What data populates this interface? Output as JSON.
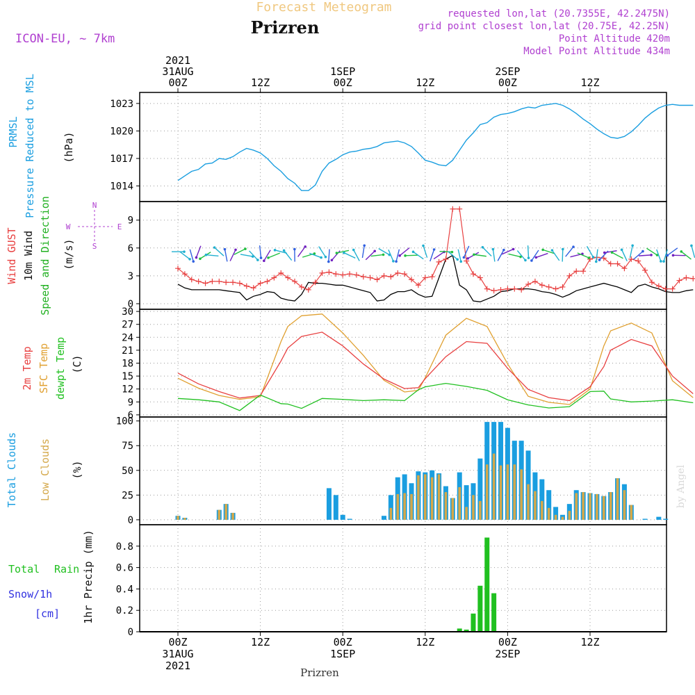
{
  "header": {
    "title_small": "Forecast Meteogram",
    "station": "Prizren",
    "model": "ICON-EU, ~ 7km",
    "requested": "requested lon,lat (20.7355E, 42.2475N)",
    "gridpoint": "grid point closest lon,lat (20.75E, 42.25N)",
    "point_alt": "Point Altitude 420m",
    "model_alt": "Model Point Altitude 434m",
    "watermark": "by Angel",
    "footer_station": "Prizren"
  },
  "time_axis": {
    "hours_total": 75,
    "top_ticks": [
      {
        "h": 0,
        "lines": [
          "2021",
          "31AUG",
          "00Z"
        ]
      },
      {
        "h": 12,
        "lines": [
          "12Z"
        ]
      },
      {
        "h": 24,
        "lines": [
          "1SEP",
          "00Z"
        ]
      },
      {
        "h": 36,
        "lines": [
          "12Z"
        ]
      },
      {
        "h": 48,
        "lines": [
          "2SEP",
          "00Z"
        ]
      },
      {
        "h": 60,
        "lines": [
          "12Z"
        ]
      }
    ],
    "bottom_ticks": [
      {
        "h": 0,
        "lines": [
          "00Z",
          "31AUG",
          "2021"
        ]
      },
      {
        "h": 12,
        "lines": [
          "12Z"
        ]
      },
      {
        "h": 24,
        "lines": [
          "00Z",
          "1SEP"
        ]
      },
      {
        "h": 36,
        "lines": [
          "12Z"
        ]
      },
      {
        "h": 48,
        "lines": [
          "00Z",
          "2SEP"
        ]
      },
      {
        "h": 60,
        "lines": [
          "12Z"
        ]
      }
    ]
  },
  "colors": {
    "prmsl": "#1a9ee0",
    "gust": "#e84040",
    "wind": "#000000",
    "dir": "#20b020",
    "temp2m": "#e84040",
    "sfc": "#e0a030",
    "dewpt": "#20c020",
    "total_cloud": "#1a9ee0",
    "low_cloud": "#d4a84a",
    "rain": "#20c020",
    "snow": "#3030e0",
    "purple": "#b040d0",
    "orange_title": "#f0c880"
  },
  "chart_data": [
    {
      "type": "line",
      "name": "prmsl",
      "title": "PRMSL Pressure Reduced to MSL",
      "ylabel": "(hPa)",
      "ylim": [
        1012.3,
        1024.2
      ],
      "yticks": [
        1014,
        1017,
        1020,
        1023
      ],
      "labels": [
        "PRMSL",
        "Pressure Reduced to MSL",
        "(hPa)"
      ],
      "x": [
        0,
        1,
        2,
        3,
        4,
        5,
        6,
        7,
        8,
        9,
        10,
        11,
        12,
        13,
        14,
        15,
        16,
        17,
        18,
        19,
        20,
        21,
        22,
        23,
        24,
        25,
        26,
        27,
        28,
        29,
        30,
        31,
        32,
        33,
        34,
        35,
        36,
        37,
        38,
        39,
        40,
        41,
        42,
        43,
        44,
        45,
        46,
        47,
        48,
        49,
        50,
        51,
        52,
        53,
        54,
        55,
        56,
        57,
        58,
        59,
        60,
        61,
        62,
        63,
        64,
        65,
        66,
        67,
        68,
        69,
        70,
        71,
        72,
        73,
        74,
        75
      ],
      "values": [
        1014.6,
        1015.1,
        1015.6,
        1015.8,
        1016.4,
        1016.5,
        1017.0,
        1016.9,
        1017.2,
        1017.7,
        1018.1,
        1017.9,
        1017.6,
        1017.0,
        1016.2,
        1015.6,
        1014.8,
        1014.3,
        1013.5,
        1013.5,
        1014.1,
        1015.6,
        1016.5,
        1016.9,
        1017.4,
        1017.7,
        1017.8,
        1018.0,
        1018.1,
        1018.3,
        1018.7,
        1018.8,
        1018.9,
        1018.7,
        1018.3,
        1017.6,
        1016.8,
        1016.6,
        1016.3,
        1016.2,
        1016.8,
        1017.9,
        1019.0,
        1019.8,
        1020.7,
        1020.9,
        1021.5,
        1021.8,
        1021.9,
        1022.1,
        1022.4,
        1022.6,
        1022.5,
        1022.8,
        1022.9,
        1023.0,
        1022.8,
        1022.4,
        1021.9,
        1021.3,
        1020.8,
        1020.2,
        1019.7,
        1019.3,
        1019.2,
        1019.4,
        1019.9,
        1020.6,
        1021.4,
        1022.0,
        1022.5,
        1022.8,
        1022.9,
        1022.8,
        1022.8,
        1022.8
      ]
    },
    {
      "type": "line",
      "name": "wind",
      "title": "Wind GUST / 10m Wind Speed and Direction",
      "ylabel": "(m/s)",
      "ylim": [
        -0.6,
        11
      ],
      "yticks": [
        0,
        3,
        6,
        9
      ],
      "labels": [
        "Wind GUST",
        "10m Wind",
        "Speed and Direction",
        "(m/s)"
      ],
      "compass": [
        "N",
        "W",
        "E",
        "S"
      ],
      "x": [
        0,
        1,
        2,
        3,
        4,
        5,
        6,
        7,
        8,
        9,
        10,
        11,
        12,
        13,
        14,
        15,
        16,
        17,
        18,
        19,
        20,
        21,
        22,
        23,
        24,
        25,
        26,
        27,
        28,
        29,
        30,
        31,
        32,
        33,
        34,
        35,
        36,
        37,
        38,
        39,
        40,
        41,
        42,
        43,
        44,
        45,
        46,
        47,
        48,
        49,
        50,
        51,
        52,
        53,
        54,
        55,
        56,
        57,
        58,
        59,
        60,
        61,
        62,
        63,
        64,
        65,
        66,
        67,
        68,
        69,
        70,
        71,
        72,
        73,
        74,
        75
      ],
      "gust": [
        3.8,
        3.2,
        2.6,
        2.4,
        2.2,
        2.4,
        2.4,
        2.3,
        2.3,
        2.2,
        1.9,
        1.7,
        2.2,
        2.4,
        2.8,
        3.3,
        2.8,
        2.4,
        1.8,
        1.5,
        2.3,
        3.3,
        3.4,
        3.2,
        3.1,
        3.2,
        3.1,
        2.9,
        2.8,
        2.6,
        3.0,
        2.9,
        3.3,
        3.2,
        2.6,
        2.0,
        2.8,
        2.9,
        4.5,
        4.8,
        10.2,
        10.2,
        4.6,
        3.2,
        2.8,
        1.6,
        1.4,
        1.5,
        1.6,
        1.6,
        1.5,
        2.1,
        2.4,
        2.0,
        1.8,
        1.6,
        1.8,
        3.0,
        3.5,
        3.5,
        4.8,
        5.0,
        4.9,
        4.3,
        4.3,
        3.8,
        4.8,
        4.6,
        3.6,
        2.3,
        1.9,
        1.6,
        1.6,
        2.5,
        2.8,
        2.7
      ],
      "speed": [
        2.1,
        1.7,
        1.5,
        1.5,
        1.5,
        1.5,
        1.5,
        1.4,
        1.3,
        1.2,
        0.4,
        0.8,
        1.0,
        1.3,
        1.2,
        0.6,
        0.4,
        0.3,
        1.0,
        2.3,
        2.2,
        2.2,
        2.1,
        2.0,
        2.0,
        1.8,
        1.6,
        1.4,
        1.2,
        0.3,
        0.4,
        1.0,
        1.3,
        1.3,
        1.5,
        1.0,
        0.7,
        0.8,
        2.8,
        4.8,
        5.2,
        2.0,
        1.5,
        0.3,
        0.2,
        0.5,
        0.8,
        1.3,
        1.4,
        1.6,
        1.6,
        1.6,
        1.5,
        1.3,
        1.2,
        1.0,
        0.7,
        1.0,
        1.4,
        1.6,
        1.8,
        2.0,
        2.2,
        2.0,
        1.8,
        1.5,
        1.2,
        1.9,
        2.1,
        1.8,
        1.6,
        1.3,
        1.2,
        1.2,
        1.4,
        1.5
      ]
    },
    {
      "type": "line",
      "name": "temperature",
      "title": "2m Temp / SFC Temp / dewpt Temp",
      "ylabel": "(C)",
      "ylim": [
        5.5,
        30.5
      ],
      "yticks": [
        6,
        9,
        12,
        15,
        18,
        21,
        24,
        27,
        30
      ],
      "labels": [
        "2m Temp",
        "SFC Temp",
        "dewpt Temp",
        "(C)"
      ],
      "x": [
        0,
        3,
        6,
        9,
        12,
        15,
        16,
        18,
        21,
        24,
        27,
        30,
        33,
        35,
        36,
        39,
        42,
        45,
        48,
        51,
        54,
        57,
        60,
        62,
        63,
        66,
        69,
        72,
        75
      ],
      "temp2m": [
        15.7,
        13.2,
        11.4,
        9.9,
        10.5,
        18.5,
        21.5,
        24.2,
        25.2,
        22.0,
        17.8,
        14.3,
        12.1,
        12.3,
        14.4,
        19.5,
        23.0,
        22.6,
        16.8,
        11.9,
        10.0,
        9.3,
        12.5,
        17.2,
        21.0,
        23.5,
        22.0,
        15.0,
        10.9
      ],
      "sfc": [
        14.5,
        12.2,
        10.5,
        9.6,
        10.2,
        23.0,
        26.5,
        29.0,
        29.4,
        25.0,
        19.8,
        14.0,
        11.3,
        11.7,
        14.6,
        24.5,
        28.4,
        26.5,
        17.8,
        10.3,
        8.9,
        8.4,
        12.0,
        22.0,
        25.5,
        27.3,
        25.0,
        13.9,
        10.0
      ],
      "dewpt": [
        9.8,
        9.5,
        9.0,
        7.0,
        10.6,
        8.6,
        8.5,
        7.5,
        9.8,
        9.6,
        9.3,
        9.5,
        9.3,
        11.8,
        12.5,
        13.3,
        12.6,
        11.7,
        9.5,
        8.3,
        7.6,
        7.9,
        11.4,
        11.5,
        9.7,
        9.0,
        9.2,
        9.5,
        8.8
      ]
    },
    {
      "type": "bar",
      "name": "clouds",
      "title": "Total Clouds / Low Clouds",
      "ylabel": "(%)",
      "ylim": [
        -5,
        104
      ],
      "yticks": [
        0,
        25,
        50,
        75,
        100
      ],
      "labels": [
        "Total Clouds",
        "Low Clouds",
        "(%)"
      ],
      "x": [
        0,
        1,
        2,
        3,
        4,
        5,
        6,
        7,
        8,
        9,
        10,
        11,
        12,
        13,
        14,
        15,
        16,
        17,
        18,
        19,
        20,
        21,
        22,
        23,
        24,
        25,
        26,
        27,
        28,
        29,
        30,
        31,
        32,
        33,
        34,
        35,
        36,
        37,
        38,
        39,
        40,
        41,
        42,
        43,
        44,
        45,
        46,
        47,
        48,
        49,
        50,
        51,
        52,
        53,
        54,
        55,
        56,
        57,
        58,
        59,
        60,
        61,
        62,
        63,
        64,
        65,
        66,
        67,
        68,
        69,
        70,
        71,
        72,
        73,
        74,
        75
      ],
      "total": [
        4,
        2,
        0,
        0,
        0,
        0,
        10,
        16,
        7,
        0,
        0,
        0,
        0,
        0,
        0,
        0,
        0,
        0,
        0,
        0,
        0,
        0,
        32,
        25,
        5,
        1,
        0,
        0,
        0,
        0,
        4,
        25,
        43,
        46,
        37,
        49,
        48,
        50,
        47,
        34,
        22,
        48,
        35,
        37,
        62,
        99,
        99,
        99,
        93,
        80,
        80,
        70,
        48,
        41,
        30,
        13,
        5,
        16,
        30,
        28,
        27,
        26,
        24,
        28,
        42,
        36,
        15,
        0,
        1,
        0,
        3,
        1,
        0,
        0,
        0,
        0
      ],
      "low": [
        4,
        2,
        0,
        0,
        0,
        0,
        10,
        16,
        7,
        0,
        0,
        0,
        0,
        0,
        0,
        0,
        0,
        0,
        0,
        0,
        0,
        0,
        0,
        0,
        0,
        0,
        0,
        0,
        0,
        0,
        0,
        12,
        26,
        27,
        26,
        45,
        46,
        43,
        46,
        28,
        22,
        33,
        13,
        25,
        19,
        56,
        67,
        55,
        56,
        56,
        51,
        36,
        29,
        19,
        12,
        5,
        3,
        9,
        27,
        28,
        27,
        26,
        24,
        28,
        42,
        30,
        15,
        0,
        0,
        0,
        0,
        0,
        0,
        0,
        0,
        0
      ]
    },
    {
      "type": "bar",
      "name": "precip",
      "title": "Total Rain / Snow/1h",
      "ylabel": "1hr Precip (mm)",
      "ylim": [
        0,
        1.0
      ],
      "yticks": [
        0,
        0.2,
        0.4,
        0.6,
        0.8
      ],
      "labels": [
        "Total",
        "Rain",
        "Snow/1h",
        "[cm]",
        "1hr Precip (mm)"
      ],
      "x": [
        41,
        42,
        43,
        44,
        45,
        46
      ],
      "rain": [
        0.03,
        0.02,
        0.17,
        0.43,
        0.88,
        0.36
      ],
      "snow": [
        0,
        0,
        0,
        0,
        0,
        0
      ]
    }
  ]
}
